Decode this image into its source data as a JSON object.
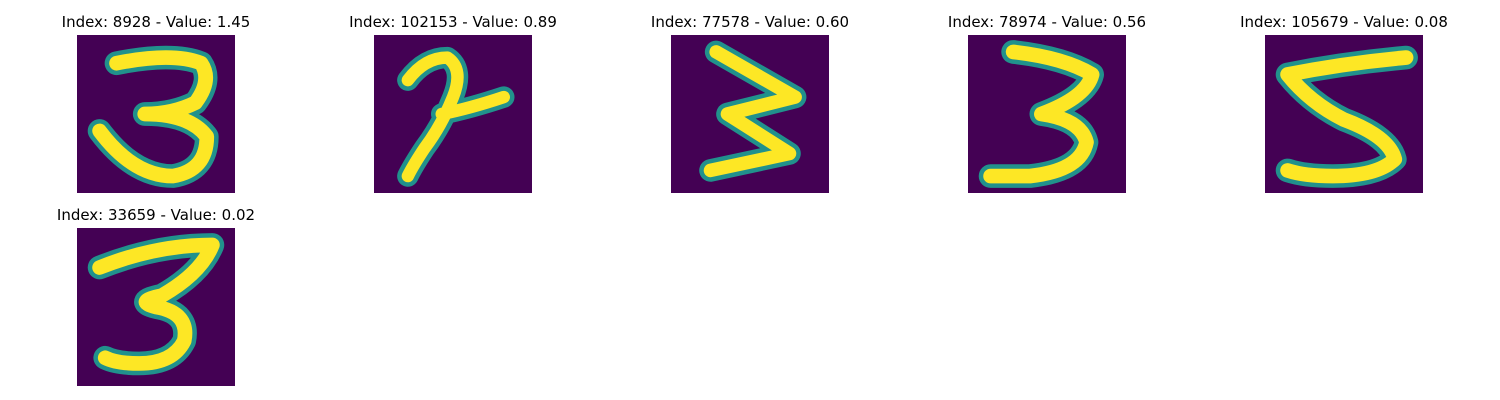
{
  "figure": {
    "colormap": "viridis",
    "background_color": "#440154",
    "stroke_color": "#fde725",
    "edge_color": "#21918c",
    "panels": [
      {
        "title": "Index: 8928 - Value: 1.45",
        "index": 8928,
        "value": 1.45,
        "depicted_digit": "3"
      },
      {
        "title": "Index: 102153 - Value: 0.89",
        "index": 102153,
        "value": 0.89,
        "depicted_digit": "7"
      },
      {
        "title": "Index: 77578 - Value: 0.60",
        "index": 77578,
        "value": 0.6,
        "depicted_digit": "3"
      },
      {
        "title": "Index: 78974 - Value: 0.56",
        "index": 78974,
        "value": 0.56,
        "depicted_digit": "3"
      },
      {
        "title": "Index: 105679 - Value: 0.08",
        "index": 105679,
        "value": 0.08,
        "depicted_digit": "5"
      },
      {
        "title": "Index: 33659 - Value: 0.02",
        "index": 33659,
        "value": 0.02,
        "depicted_digit": "3"
      }
    ]
  }
}
